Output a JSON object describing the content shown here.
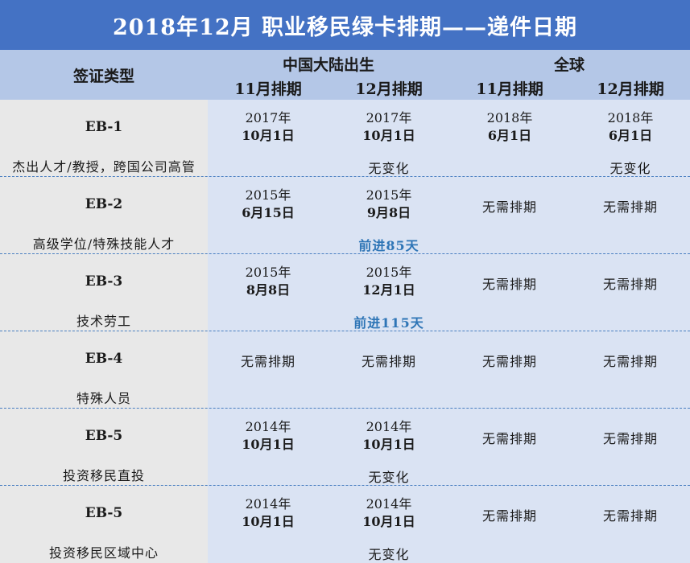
{
  "title": "2018年12月  职业移民绿卡排期——递件日期",
  "header": {
    "visa_type": "签证类型",
    "china": "中国大陆出生",
    "global": "全球",
    "nov": "11月排期",
    "dec": "12月排期"
  },
  "rows": [
    {
      "eb": "EB-1",
      "desc": "杰出人才/教授，跨国公司高管",
      "cn_nov": {
        "year": "2017年",
        "md": "10月1日"
      },
      "cn_dec": {
        "year": "2017年",
        "md": "10月1日"
      },
      "gl_nov": {
        "year": "2018年",
        "md": "6月1日"
      },
      "gl_dec": {
        "year": "2018年",
        "md": "6月1日"
      },
      "cn_note": "无变化",
      "gl_note": "无变化"
    },
    {
      "eb": "EB-2",
      "desc": "高级学位/特殊技能人才",
      "cn_nov": {
        "year": "2015年",
        "md": "6月15日"
      },
      "cn_dec": {
        "year": "2015年",
        "md": "9月8日"
      },
      "gl_nov": "无需排期",
      "gl_dec": "无需排期",
      "cn_note": "前进85天"
    },
    {
      "eb": "EB-3",
      "desc": "技术劳工",
      "cn_nov": {
        "year": "2015年",
        "md": "8月8日"
      },
      "cn_dec": {
        "year": "2015年",
        "md": "12月1日"
      },
      "gl_nov": "无需排期",
      "gl_dec": "无需排期",
      "cn_note": "前进115天"
    },
    {
      "eb": "EB-4",
      "desc": "特殊人员",
      "cn_nov": "无需排期",
      "cn_dec": "无需排期",
      "gl_nov": "无需排期",
      "gl_dec": "无需排期"
    },
    {
      "eb": "EB-5",
      "desc": "投资移民直投",
      "cn_nov": {
        "year": "2014年",
        "md": "10月1日"
      },
      "cn_dec": {
        "year": "2014年",
        "md": "10月1日"
      },
      "gl_nov": "无需排期",
      "gl_dec": "无需排期",
      "cn_note": "无变化"
    },
    {
      "eb": "EB-5",
      "desc": "投资移民区域中心",
      "cn_nov": {
        "year": "2014年",
        "md": "10月1日"
      },
      "cn_dec": {
        "year": "2014年",
        "md": "10月1日"
      },
      "gl_nov": "无需排期",
      "gl_dec": "无需排期",
      "cn_note": "无变化"
    }
  ],
  "colors": {
    "title_bg": "#4472c4",
    "header_bg": "#b4c7e7",
    "left_col_bg": "#e8e8e8",
    "data_bg": "#dae3f3",
    "advance_text": "#2e75b6",
    "divider": "#4a7fc1"
  }
}
